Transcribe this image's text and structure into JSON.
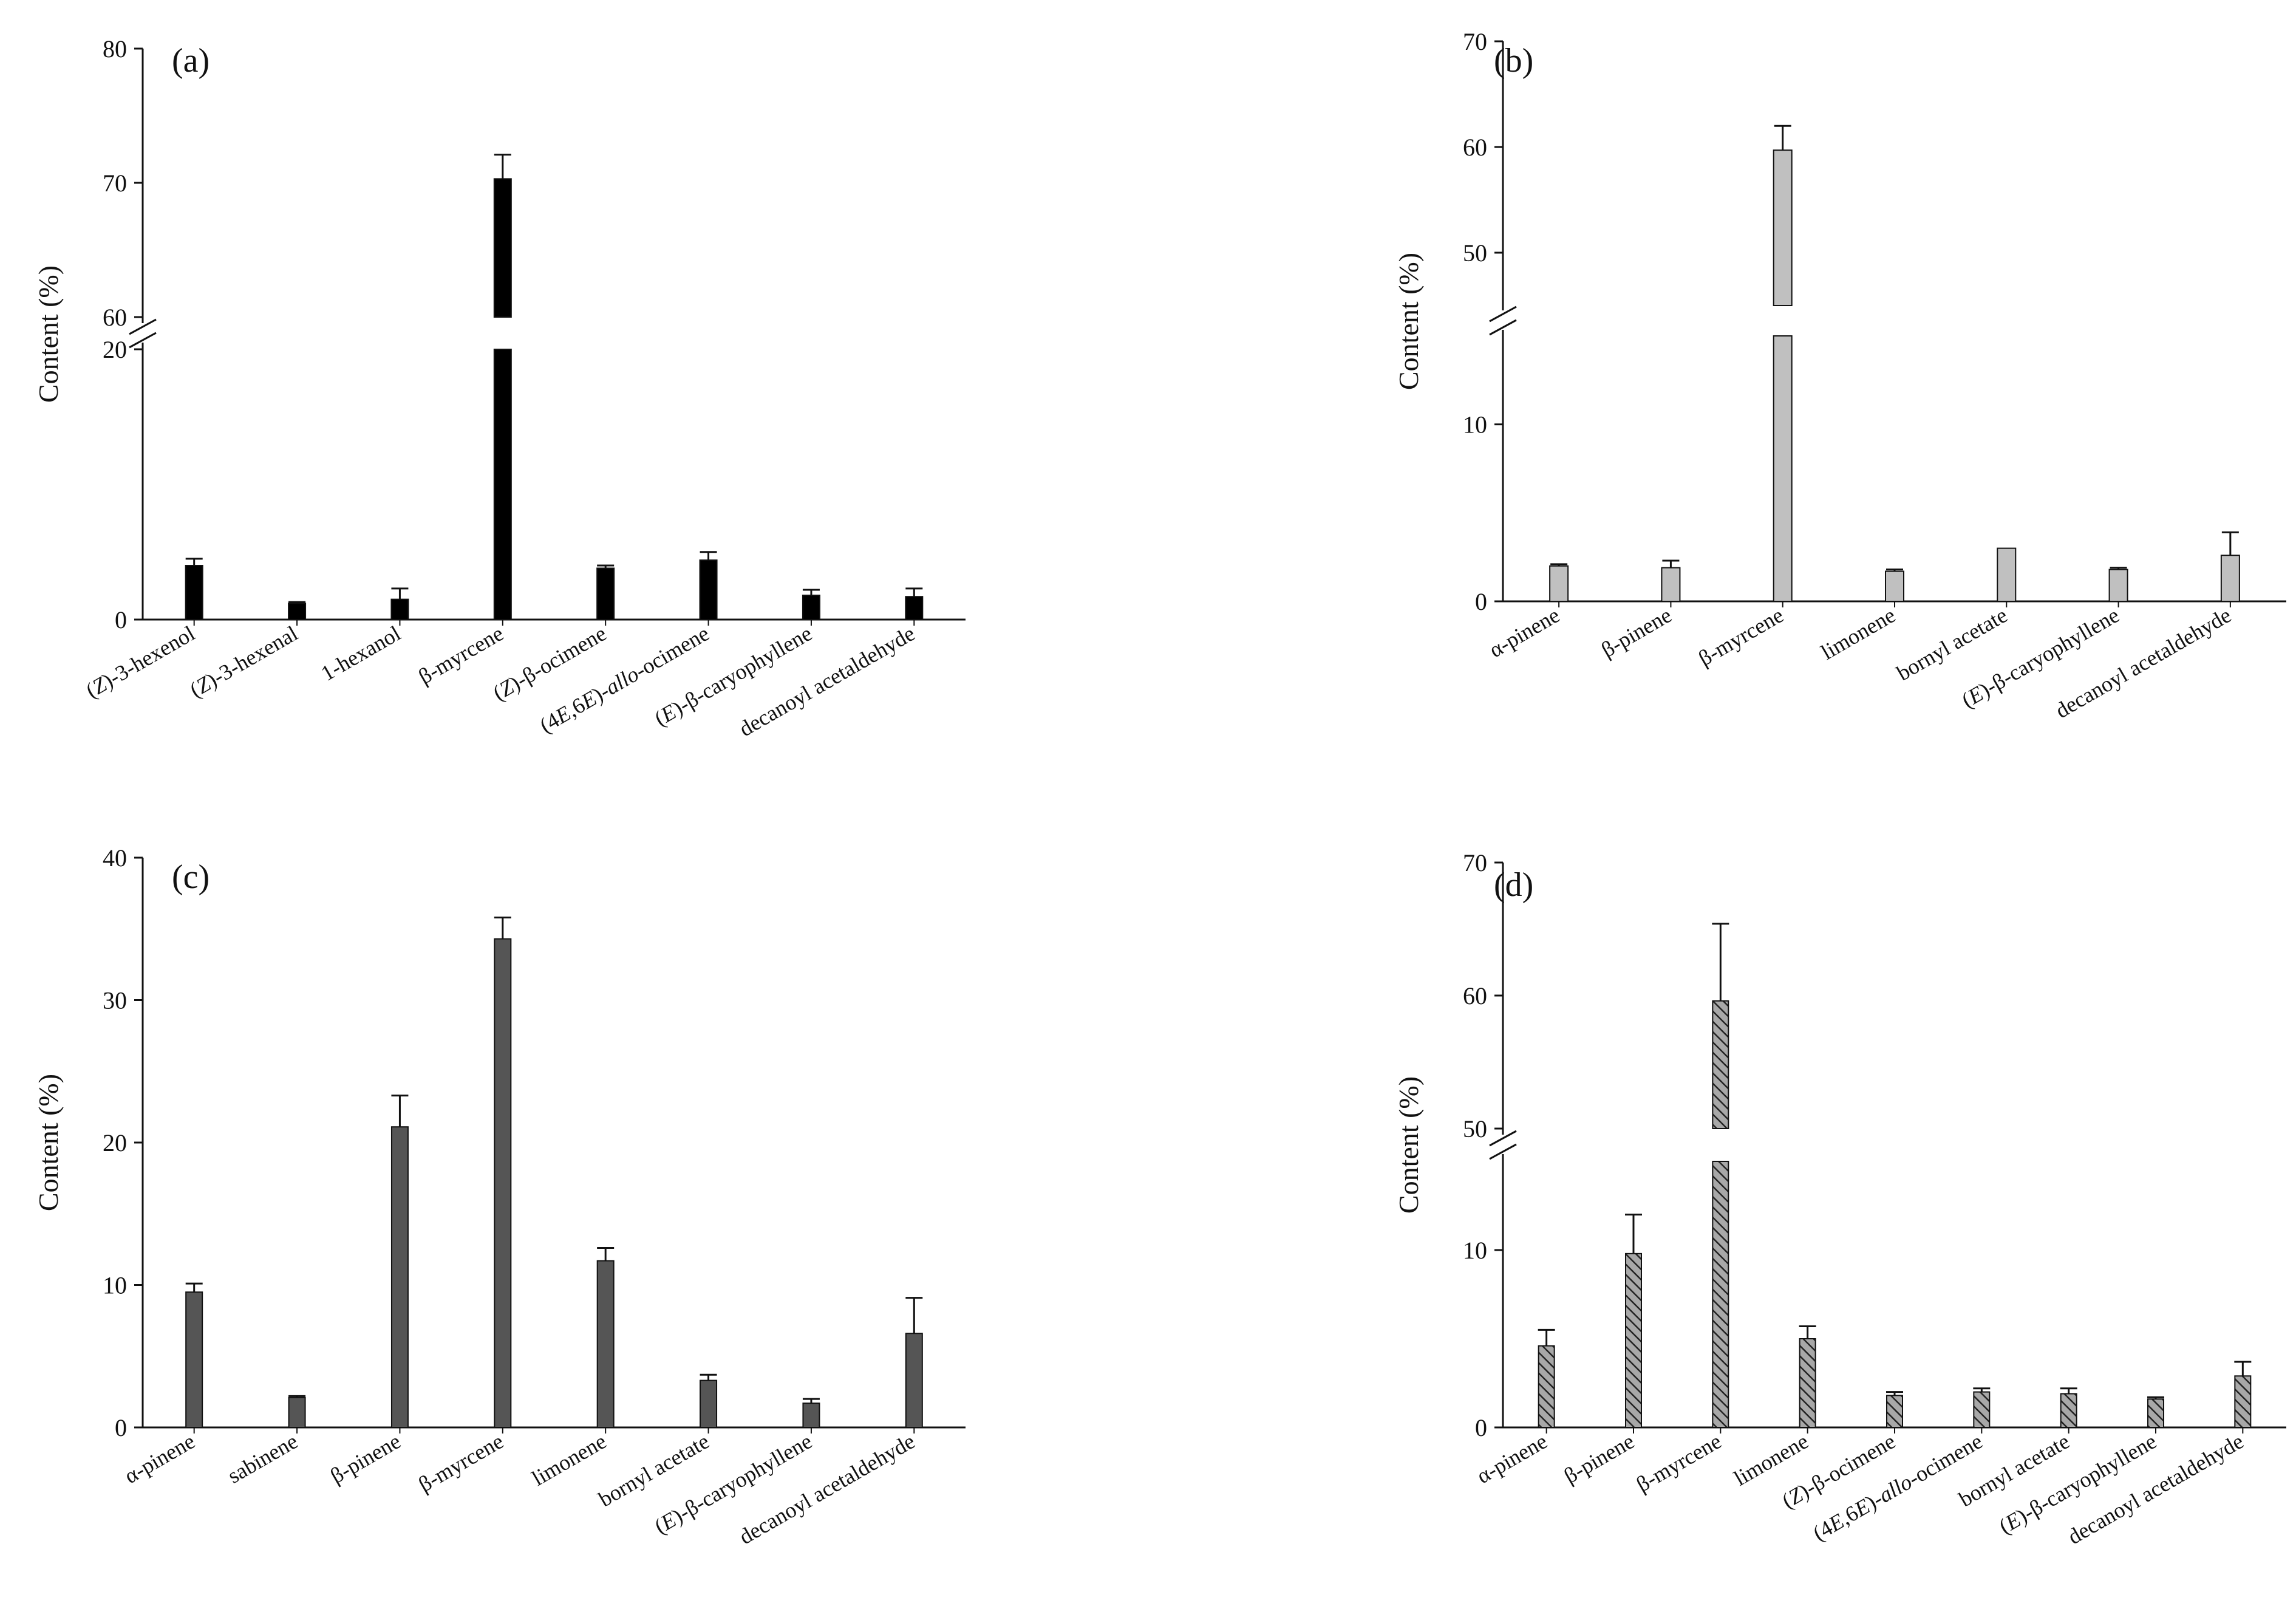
{
  "chart_data": [
    {
      "id": "a",
      "panel_label": "(a)",
      "type": "bar",
      "ylabel": "Content (%)",
      "bar_style": "black",
      "axis_break": {
        "lower_max": 20,
        "upper_min": 60
      },
      "ylim": [
        0,
        80
      ],
      "yticks": [
        0,
        20,
        60,
        70,
        80
      ],
      "ytick_labels": [
        "0",
        "20",
        "60",
        "70",
        "80"
      ],
      "categories": [
        [
          {
            "t": "("
          },
          {
            "t": "Z",
            "i": true
          },
          {
            "t": ")-3-hexenol"
          }
        ],
        [
          {
            "t": "("
          },
          {
            "t": "Z",
            "i": true
          },
          {
            "t": ")-3-hexenal"
          }
        ],
        [
          {
            "t": "1-hexanol"
          }
        ],
        [
          {
            "t": "β-myrcene"
          }
        ],
        [
          {
            "t": "("
          },
          {
            "t": "Z",
            "i": true
          },
          {
            "t": ")-β-ocimene"
          }
        ],
        [
          {
            "t": "(4"
          },
          {
            "t": "E",
            "i": true
          },
          {
            "t": ",6"
          },
          {
            "t": "E",
            "i": true
          },
          {
            "t": ")-"
          },
          {
            "t": "allo",
            "i": true
          },
          {
            "t": "-ocimene"
          }
        ],
        [
          {
            "t": "("
          },
          {
            "t": "E",
            "i": true
          },
          {
            "t": ")-β-caryophyllene"
          }
        ],
        [
          {
            "t": "decanoyl acetaldehyde"
          }
        ]
      ],
      "values": [
        4.0,
        1.2,
        1.5,
        70.3,
        3.8,
        4.4,
        1.8,
        1.7
      ],
      "errors": [
        0.5,
        0.1,
        0.8,
        1.8,
        0.2,
        0.6,
        0.4,
        0.6
      ]
    },
    {
      "id": "b",
      "panel_label": "(b)",
      "type": "bar",
      "ylabel": "Content (%)",
      "bar_style": "lightgray",
      "axis_break": {
        "lower_max": 15,
        "upper_min": 45
      },
      "ylim": [
        0,
        70
      ],
      "yticks": [
        0,
        10,
        50,
        60,
        70
      ],
      "ytick_labels": [
        "0",
        "10",
        "50",
        "60",
        "70"
      ],
      "categories": [
        [
          {
            "t": "α-pinene"
          }
        ],
        [
          {
            "t": "β-pinene"
          }
        ],
        [
          {
            "t": "β-myrcene"
          }
        ],
        [
          {
            "t": "limonene"
          }
        ],
        [
          {
            "t": "bornyl acetate"
          }
        ],
        [
          {
            "t": "("
          },
          {
            "t": "E",
            "i": true
          },
          {
            "t": ")-β-caryophyllene"
          }
        ],
        [
          {
            "t": "decanoyl acetaldehyde"
          }
        ]
      ],
      "values": [
        2.0,
        1.9,
        59.7,
        1.7,
        3.0,
        1.8,
        2.6
      ],
      "errors": [
        0.1,
        0.4,
        2.3,
        0.1,
        0.0,
        0.1,
        1.3
      ]
    },
    {
      "id": "c",
      "panel_label": "(c)",
      "type": "bar",
      "ylabel": "Content (%)",
      "bar_style": "darkgray",
      "axis_break": null,
      "ylim": [
        0,
        40
      ],
      "yticks": [
        0,
        10,
        20,
        30,
        40
      ],
      "ytick_labels": [
        "0",
        "10",
        "20",
        "30",
        "40"
      ],
      "categories": [
        [
          {
            "t": "α-pinene"
          }
        ],
        [
          {
            "t": "sabinene"
          }
        ],
        [
          {
            "t": "β-pinene"
          }
        ],
        [
          {
            "t": "β-myrcene"
          }
        ],
        [
          {
            "t": "limonene"
          }
        ],
        [
          {
            "t": "bornyl acetate"
          }
        ],
        [
          {
            "t": "("
          },
          {
            "t": "E",
            "i": true
          },
          {
            "t": ")-β-caryophyllene"
          }
        ],
        [
          {
            "t": "decanoyl acetaldehyde"
          }
        ]
      ],
      "values": [
        9.5,
        2.1,
        21.1,
        34.3,
        11.7,
        3.3,
        1.7,
        6.6
      ],
      "errors": [
        0.6,
        0.1,
        2.2,
        1.5,
        0.9,
        0.4,
        0.3,
        2.5
      ]
    },
    {
      "id": "d",
      "panel_label": "(d)",
      "type": "bar",
      "ylabel": "Content (%)",
      "bar_style": "hatched",
      "axis_break": {
        "lower_max": 15,
        "upper_min": 50
      },
      "ylim": [
        0,
        70
      ],
      "yticks": [
        0,
        10,
        50,
        60,
        70
      ],
      "ytick_labels": [
        "0",
        "10",
        "50",
        "60",
        "70"
      ],
      "categories": [
        [
          {
            "t": "α-pinene"
          }
        ],
        [
          {
            "t": "β-pinene"
          }
        ],
        [
          {
            "t": "β-myrcene"
          }
        ],
        [
          {
            "t": "limonene"
          }
        ],
        [
          {
            "t": "("
          },
          {
            "t": "Z",
            "i": true
          },
          {
            "t": ")-β-ocimene"
          }
        ],
        [
          {
            "t": "(4"
          },
          {
            "t": "E",
            "i": true
          },
          {
            "t": ",6"
          },
          {
            "t": "E",
            "i": true
          },
          {
            "t": ")-"
          },
          {
            "t": "allo",
            "i": true
          },
          {
            "t": "-ocimene"
          }
        ],
        [
          {
            "t": "bornyl acetate"
          }
        ],
        [
          {
            "t": "("
          },
          {
            "t": "E",
            "i": true
          },
          {
            "t": ")-β-caryophyllene"
          }
        ],
        [
          {
            "t": "decanoyl acetaldehyde"
          }
        ]
      ],
      "values": [
        4.6,
        9.8,
        59.6,
        5.0,
        1.8,
        2.0,
        1.9,
        1.6,
        2.9
      ],
      "errors": [
        0.9,
        2.2,
        5.8,
        0.7,
        0.2,
        0.2,
        0.3,
        0.1,
        0.8
      ]
    }
  ],
  "colors": {
    "axis": "#111111",
    "black": "#000000",
    "lightgray": "#c0c0c0",
    "darkgray": "#555555",
    "hatch_fill": "#a8a8a8",
    "hatch_line": "#222222"
  }
}
